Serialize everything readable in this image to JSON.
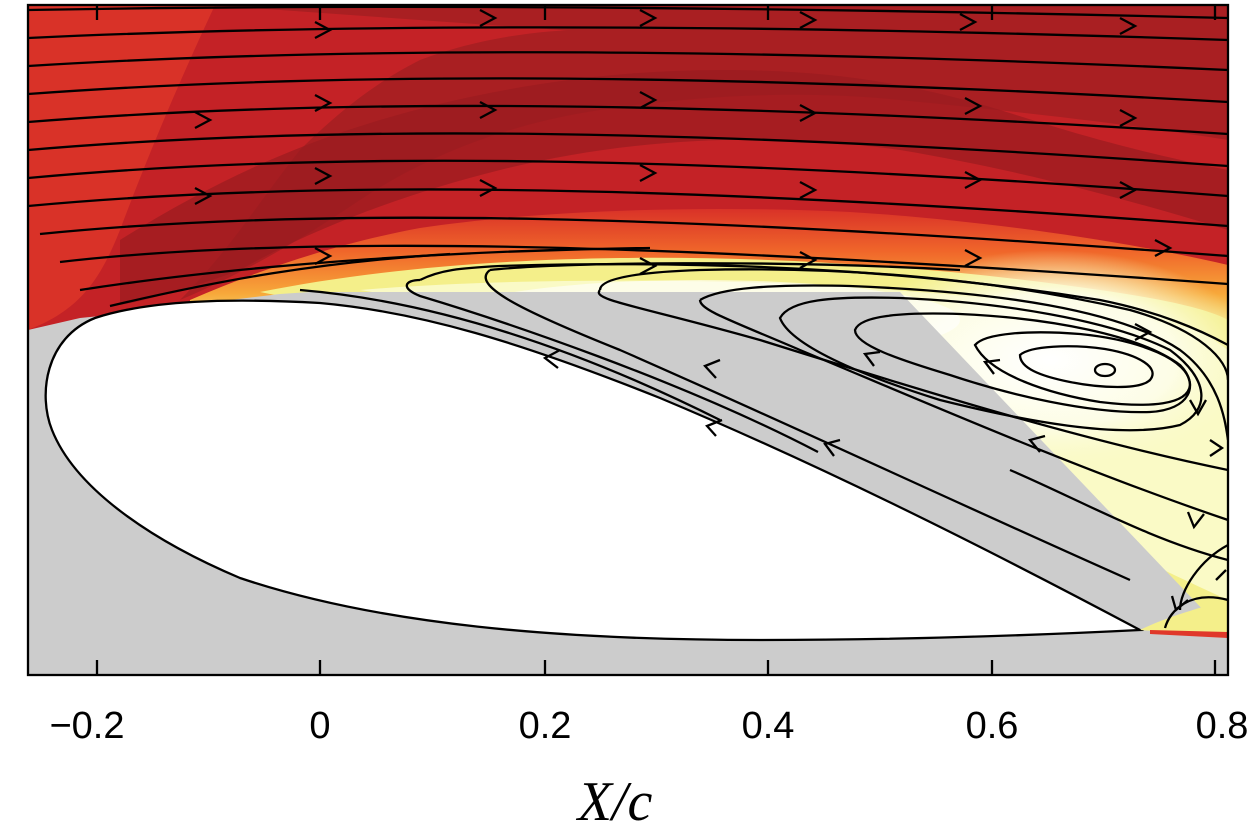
{
  "chart_data": {
    "type": "heatmap",
    "title": "",
    "xlabel": "X/c",
    "ylabel": "",
    "xlim": [
      -0.26,
      0.81
    ],
    "x_ticks": [
      -0.2,
      0,
      0.2,
      0.4,
      0.6,
      0.8
    ],
    "x_tick_labels": [
      "−0.2",
      "0",
      "0.2",
      "0.4",
      "0.6",
      "0.8"
    ],
    "grid": false,
    "legend": "none",
    "description_series": [
      {
        "name": "high-velocity region",
        "color": "#a41f22"
      },
      {
        "name": "mid-velocity region",
        "color": "#d63128"
      },
      {
        "name": "shear layer",
        "color": "#f07b22"
      },
      {
        "name": "separated region",
        "color": "#f5f4a0"
      },
      {
        "name": "recirculation core",
        "color": "#ffffff"
      },
      {
        "name": "masked region",
        "color": "#cccccc"
      }
    ]
  },
  "colors": {
    "dark_red": "#9e1d20",
    "red": "#b82024",
    "bright_red": "#d93228",
    "orange": "#f0662a",
    "light_orange": "#f7a83a",
    "yellow": "#f4ef8a",
    "pale_yellow": "#fafac6",
    "mask_gray": "#cccccc",
    "airfoil_fill": "#ffffff",
    "line": "#000000"
  }
}
